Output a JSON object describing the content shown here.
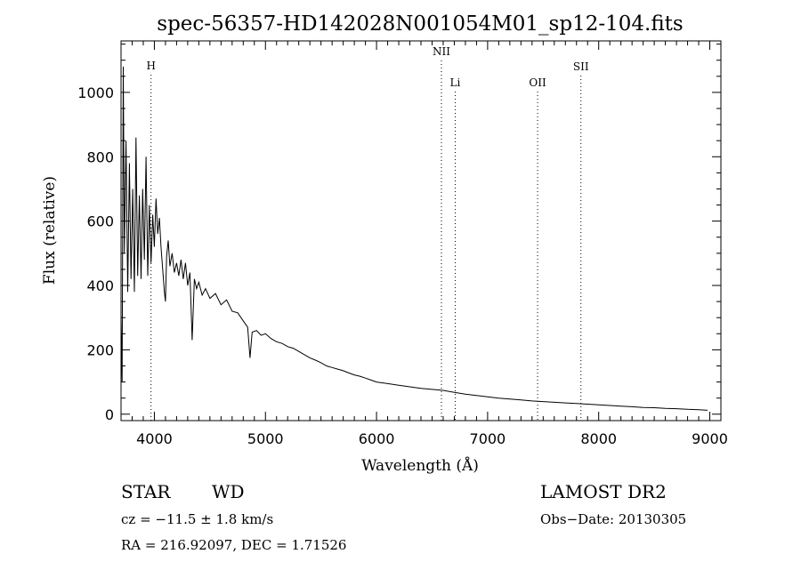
{
  "chart_data": {
    "type": "line",
    "title": "spec-56357-HD142028N001054M01_sp12-104.fits",
    "xlabel": "Wavelength (Å)",
    "ylabel": "Flux (relative)",
    "xlim": [
      3700,
      9100
    ],
    "ylim": [
      -20,
      1160
    ],
    "x_ticks": [
      4000,
      5000,
      6000,
      7000,
      8000,
      9000
    ],
    "y_ticks": [
      0,
      200,
      400,
      600,
      800,
      1000
    ],
    "grid": false,
    "series": [
      {
        "points": [
          [
            3700,
            300
          ],
          [
            3710,
            100
          ],
          [
            3720,
            1080
          ],
          [
            3730,
            500
          ],
          [
            3745,
            850
          ],
          [
            3760,
            380
          ],
          [
            3775,
            780
          ],
          [
            3790,
            420
          ],
          [
            3805,
            700
          ],
          [
            3820,
            380
          ],
          [
            3835,
            860
          ],
          [
            3850,
            430
          ],
          [
            3865,
            680
          ],
          [
            3880,
            420
          ],
          [
            3895,
            700
          ],
          [
            3910,
            480
          ],
          [
            3925,
            800
          ],
          [
            3940,
            430
          ],
          [
            3955,
            650
          ],
          [
            3970,
            470
          ],
          [
            3985,
            620
          ],
          [
            4000,
            520
          ],
          [
            4015,
            670
          ],
          [
            4030,
            560
          ],
          [
            4045,
            610
          ],
          [
            4060,
            520
          ],
          [
            4075,
            450
          ],
          [
            4090,
            380
          ],
          [
            4100,
            350
          ],
          [
            4110,
            490
          ],
          [
            4125,
            540
          ],
          [
            4140,
            460
          ],
          [
            4160,
            500
          ],
          [
            4180,
            440
          ],
          [
            4200,
            470
          ],
          [
            4220,
            430
          ],
          [
            4240,
            480
          ],
          [
            4260,
            420
          ],
          [
            4280,
            470
          ],
          [
            4300,
            400
          ],
          [
            4320,
            440
          ],
          [
            4340,
            230
          ],
          [
            4360,
            420
          ],
          [
            4380,
            390
          ],
          [
            4400,
            410
          ],
          [
            4430,
            370
          ],
          [
            4460,
            390
          ],
          [
            4500,
            360
          ],
          [
            4550,
            375
          ],
          [
            4600,
            340
          ],
          [
            4650,
            355
          ],
          [
            4700,
            320
          ],
          [
            4750,
            315
          ],
          [
            4800,
            290
          ],
          [
            4840,
            270
          ],
          [
            4861,
            175
          ],
          [
            4880,
            255
          ],
          [
            4920,
            260
          ],
          [
            4960,
            245
          ],
          [
            5000,
            250
          ],
          [
            5050,
            235
          ],
          [
            5100,
            225
          ],
          [
            5150,
            220
          ],
          [
            5200,
            210
          ],
          [
            5250,
            205
          ],
          [
            5300,
            195
          ],
          [
            5350,
            185
          ],
          [
            5400,
            175
          ],
          [
            5450,
            168
          ],
          [
            5500,
            160
          ],
          [
            5550,
            150
          ],
          [
            5600,
            145
          ],
          [
            5650,
            140
          ],
          [
            5700,
            135
          ],
          [
            5750,
            128
          ],
          [
            5800,
            122
          ],
          [
            5850,
            118
          ],
          [
            5900,
            112
          ],
          [
            5950,
            106
          ],
          [
            6000,
            100
          ],
          [
            6100,
            95
          ],
          [
            6200,
            90
          ],
          [
            6300,
            85
          ],
          [
            6400,
            80
          ],
          [
            6500,
            77
          ],
          [
            6600,
            74
          ],
          [
            6700,
            68
          ],
          [
            6800,
            62
          ],
          [
            6900,
            58
          ],
          [
            7000,
            54
          ],
          [
            7100,
            50
          ],
          [
            7200,
            47
          ],
          [
            7300,
            44
          ],
          [
            7400,
            41
          ],
          [
            7500,
            39
          ],
          [
            7600,
            37
          ],
          [
            7700,
            35
          ],
          [
            7800,
            33
          ],
          [
            7900,
            31
          ],
          [
            8000,
            29
          ],
          [
            8100,
            27
          ],
          [
            8200,
            25
          ],
          [
            8300,
            23
          ],
          [
            8400,
            21
          ],
          [
            8500,
            20
          ],
          [
            8600,
            18
          ],
          [
            8700,
            17
          ],
          [
            8800,
            15
          ],
          [
            8900,
            14
          ],
          [
            8980,
            12
          ]
        ]
      }
    ],
    "line_markers": [
      {
        "label": "H",
        "x": 3970
      },
      {
        "label": "NII",
        "x": 6584
      },
      {
        "label": "Li",
        "x": 6708
      },
      {
        "label": "OII",
        "x": 7450
      },
      {
        "label": "SII",
        "x": 7840
      }
    ]
  },
  "info": {
    "object_class": "STAR",
    "subclass": "WD",
    "survey": "LAMOST DR2",
    "redshift_text": "cz = −11.5 ± 1.8 km/s",
    "obs_date": "Obs−Date: 20130305",
    "coords": "RA = 216.92097, DEC =   1.71526"
  }
}
